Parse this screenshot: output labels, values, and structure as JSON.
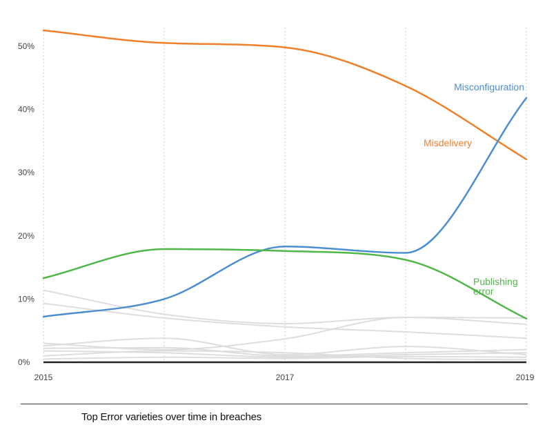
{
  "caption": "Top Error varieties over time in breaches",
  "chart_data": {
    "type": "line",
    "title": "",
    "xlabel": "",
    "ylabel": "",
    "x": [
      2015,
      2016,
      2017,
      2018,
      2019
    ],
    "xlim": [
      2015,
      2019
    ],
    "ylim": [
      0,
      52.5
    ],
    "xticks": [
      "2015",
      "2017",
      "2019"
    ],
    "yticks": [
      "0%",
      "10%",
      "20%",
      "30%",
      "40%",
      "50%"
    ],
    "ytick_values": [
      0,
      10,
      20,
      30,
      40,
      50
    ],
    "vertical_grid_at": [
      2015,
      2016,
      2017,
      2018,
      2019
    ],
    "grid": "vertical dotted",
    "series": [
      {
        "name": "Misdelivery",
        "color": "#f07f2a",
        "values": [
          52.5,
          50.5,
          49.8,
          43.7,
          32.1
        ]
      },
      {
        "name": "Misconfiguration",
        "color": "#4a8ed1",
        "values": [
          7.2,
          10.0,
          18.3,
          17.3,
          41.8
        ]
      },
      {
        "name": "Publishing error",
        "color": "#4fb648",
        "values": [
          13.3,
          17.9,
          17.6,
          16.2,
          6.9
        ]
      }
    ],
    "label_text": {
      "Misdelivery": [
        "Misdelivery"
      ],
      "Misconfiguration": [
        "Misconfiguration"
      ],
      "Publishing error": [
        "Publishing",
        "error"
      ]
    },
    "background_series": [
      {
        "color": "#dddddd",
        "values": [
          11.4,
          7.6,
          6.1,
          7.1,
          7.0
        ]
      },
      {
        "color": "#dddddd",
        "values": [
          9.3,
          7.0,
          5.6,
          4.8,
          3.8
        ]
      },
      {
        "color": "#dddddd",
        "values": [
          2.6,
          3.8,
          1.2,
          2.5,
          1.2
        ]
      },
      {
        "color": "#dddddd",
        "values": [
          3.0,
          2.0,
          3.7,
          7.1,
          6.0
        ]
      },
      {
        "color": "#dddddd",
        "values": [
          2.2,
          2.3,
          1.0,
          1.5,
          2.0
        ]
      },
      {
        "color": "#dddddd",
        "values": [
          1.8,
          1.5,
          0.8,
          1.2,
          1.5
        ]
      },
      {
        "color": "#dddddd",
        "values": [
          1.0,
          1.8,
          1.5,
          0.6,
          0.4
        ]
      },
      {
        "color": "#dddddd",
        "values": [
          0.5,
          0.8,
          0.6,
          0.9,
          0.8
        ]
      }
    ],
    "axis_color": "#222222",
    "grid_color": "#cccccc",
    "tick_color": "#444444"
  }
}
